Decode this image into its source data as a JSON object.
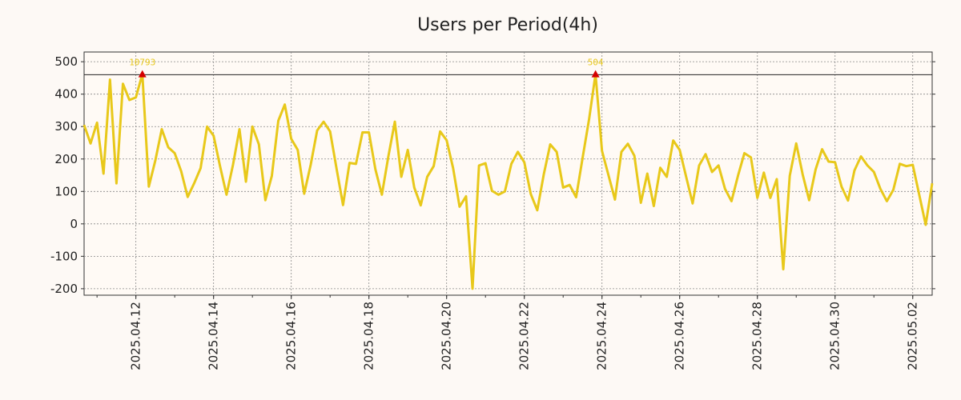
{
  "chart_data": {
    "type": "line",
    "title": "Users per Period(4h)",
    "xlabel": "",
    "ylabel": "",
    "x_range": [
      "2025-04-10T16:00",
      "2025-05-02T08:00"
    ],
    "interval_hours": 4,
    "ylim": [
      -220,
      530
    ],
    "yticks": [
      -200,
      -100,
      0,
      100,
      200,
      300,
      400,
      500
    ],
    "xticks": [
      "2025.04.12",
      "2025.04.14",
      "2025.04.16",
      "2025.04.18",
      "2025.04.20",
      "2025.04.22",
      "2025.04.24",
      "2025.04.26",
      "2025.04.28",
      "2025.04.30",
      "2025.05.02"
    ],
    "grid": true,
    "reference_line": 460,
    "colors": {
      "line": "#e8c81a",
      "marker": "#d40000",
      "reference": "#222222",
      "grid": "#888888",
      "background": "#fdf9f5",
      "plot_bg": "#fffaf5"
    },
    "series": [
      {
        "values": [
          305,
          248,
          312,
          155,
          445,
          125,
          432,
          382,
          390,
          462,
          115,
          195,
          292,
          236,
          218,
          162,
          83,
          125,
          172,
          300,
          272,
          178,
          90,
          182,
          292,
          130,
          300,
          245,
          73,
          148,
          318,
          368,
          262,
          228,
          93,
          182,
          288,
          315,
          285,
          170,
          58,
          188,
          185,
          282,
          282,
          168,
          90,
          208,
          315,
          145,
          228,
          112,
          57,
          145,
          178,
          285,
          258,
          172,
          53,
          85,
          -200,
          180,
          187,
          102,
          90,
          100,
          185,
          222,
          190,
          92,
          42,
          152,
          245,
          222,
          112,
          120,
          82,
          203,
          322,
          462,
          225,
          150,
          75,
          222,
          247,
          210,
          65,
          155,
          55,
          173,
          145,
          257,
          228,
          145,
          63,
          180,
          215,
          160,
          180,
          108,
          70,
          148,
          218,
          205,
          80,
          158,
          80,
          138,
          -140,
          148,
          248,
          152,
          73,
          168,
          230,
          192,
          190,
          115,
          72,
          165,
          208,
          180,
          160,
          108,
          70,
          105,
          185,
          178,
          182,
          90,
          -3,
          125
        ]
      }
    ],
    "peaks": [
      {
        "label": "10793",
        "index": 9,
        "value": 462
      },
      {
        "label": "504",
        "index": 79,
        "value": 462
      }
    ]
  }
}
